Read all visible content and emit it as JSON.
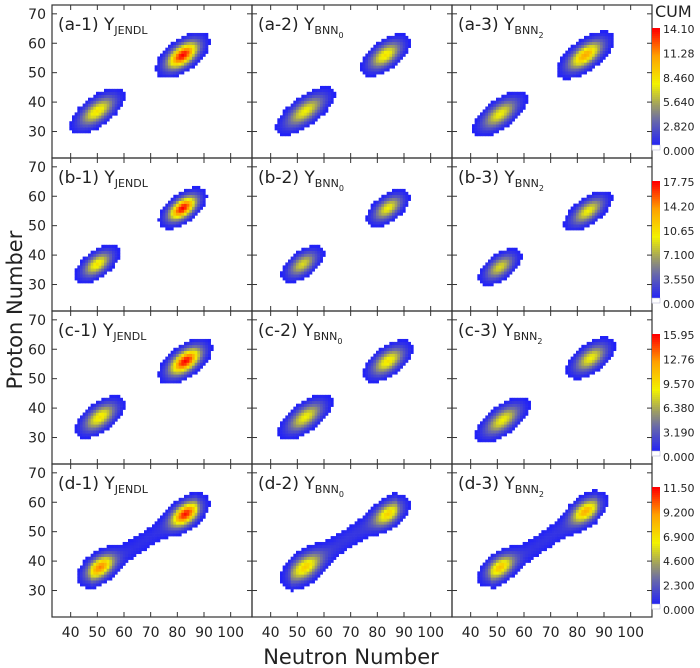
{
  "chart_data": {
    "type": "heatmap",
    "xlabel": "Neutron Number",
    "ylabel": "Proton Number",
    "colorbar_title": "CUM",
    "xlim": [
      33,
      108
    ],
    "ylim": [
      21,
      73
    ],
    "xticks": [
      40,
      50,
      60,
      70,
      80,
      90,
      100
    ],
    "yticks": [
      30,
      40,
      50,
      60,
      70
    ],
    "colormap": [
      "#ffffff",
      "#1a1aff",
      "#6a6aa8",
      "#a0a060",
      "#f2f200",
      "#ffa000",
      "#ff0000"
    ],
    "rows": [
      {
        "colorbar_ticks": [
          "0.000",
          "2.820",
          "5.640",
          "8.460",
          "11.28",
          "14.10"
        ],
        "max": 14.1,
        "panels": [
          {
            "label": "(a-1) Y",
            "sub": "JENDL",
            "clusters": [
              {
                "n": 50,
                "z": 37,
                "amp": 0.6,
                "s1": 5,
                "s2": 2.2
              },
              {
                "n": 82,
                "z": 56,
                "amp": 1.0,
                "s1": 4.5,
                "s2": 2.2
              }
            ],
            "band": 0
          },
          {
            "label": "(a-2) Y",
            "sub": "BNN",
            "subsub": "0",
            "clusters": [
              {
                "n": 53,
                "z": 37,
                "amp": 0.55,
                "s1": 5.5,
                "s2": 2.2
              },
              {
                "n": 83,
                "z": 56,
                "amp": 0.6,
                "s1": 4.5,
                "s2": 2.2
              }
            ],
            "band": 0
          },
          {
            "label": "(a-3) Y",
            "sub": "BNN",
            "subsub": "2",
            "clusters": [
              {
                "n": 51,
                "z": 36,
                "amp": 0.55,
                "s1": 5,
                "s2": 2.2
              },
              {
                "n": 83,
                "z": 56,
                "amp": 0.75,
                "s1": 5,
                "s2": 2.2
              }
            ],
            "band": 0
          }
        ]
      },
      {
        "colorbar_ticks": [
          "0.000",
          "3.550",
          "7.100",
          "10.65",
          "14.20",
          "17.75"
        ],
        "max": 17.75,
        "panels": [
          {
            "label": "(b-1) Y",
            "sub": "JENDL",
            "clusters": [
              {
                "n": 50,
                "z": 37,
                "amp": 0.6,
                "s1": 4,
                "s2": 2
              },
              {
                "n": 82,
                "z": 56,
                "amp": 1.0,
                "s1": 4,
                "s2": 2
              }
            ],
            "band": 0
          },
          {
            "label": "(b-2) Y",
            "sub": "BNN",
            "subsub": "0",
            "clusters": [
              {
                "n": 52,
                "z": 37,
                "amp": 0.5,
                "s1": 4,
                "s2": 2
              },
              {
                "n": 84,
                "z": 56,
                "amp": 0.55,
                "s1": 4,
                "s2": 2
              }
            ],
            "band": 0
          },
          {
            "label": "(b-3) Y",
            "sub": "BNN",
            "subsub": "2",
            "clusters": [
              {
                "n": 51,
                "z": 36,
                "amp": 0.5,
                "s1": 4,
                "s2": 2
              },
              {
                "n": 84,
                "z": 55,
                "amp": 0.55,
                "s1": 4.5,
                "s2": 2
              }
            ],
            "band": 0
          }
        ]
      },
      {
        "colorbar_ticks": [
          "0.000",
          "3.190",
          "6.380",
          "9.570",
          "12.76",
          "15.95"
        ],
        "max": 15.95,
        "panels": [
          {
            "label": "(c-1) Y",
            "sub": "JENDL",
            "clusters": [
              {
                "n": 51,
                "z": 37,
                "amp": 0.6,
                "s1": 4.5,
                "s2": 2.2
              },
              {
                "n": 83,
                "z": 56,
                "amp": 1.0,
                "s1": 4.5,
                "s2": 2.2
              }
            ],
            "band": 0
          },
          {
            "label": "(c-2) Y",
            "sub": "BNN",
            "subsub": "0",
            "clusters": [
              {
                "n": 53,
                "z": 37,
                "amp": 0.55,
                "s1": 5,
                "s2": 2.2
              },
              {
                "n": 84,
                "z": 56,
                "amp": 0.6,
                "s1": 4.5,
                "s2": 2.2
              }
            ],
            "band": 0
          },
          {
            "label": "(c-3) Y",
            "sub": "BNN",
            "subsub": "2",
            "clusters": [
              {
                "n": 52,
                "z": 36,
                "amp": 0.55,
                "s1": 5,
                "s2": 2.2
              },
              {
                "n": 85,
                "z": 57,
                "amp": 0.55,
                "s1": 4.5,
                "s2": 2.2
              }
            ],
            "band": 0
          }
        ]
      },
      {
        "colorbar_ticks": [
          "0.000",
          "2.300",
          "4.600",
          "6.900",
          "9.200",
          "11.50"
        ],
        "max": 11.5,
        "panels": [
          {
            "label": "(d-1) Y",
            "sub": "JENDL",
            "clusters": [
              {
                "n": 51,
                "z": 38,
                "amp": 0.75,
                "s1": 4,
                "s2": 2.2
              },
              {
                "n": 83,
                "z": 56,
                "amp": 0.9,
                "s1": 4,
                "s2": 2.2
              }
            ],
            "band": 0.08
          },
          {
            "label": "(d-2) Y",
            "sub": "BNN",
            "subsub": "0",
            "clusters": [
              {
                "n": 53,
                "z": 38,
                "amp": 0.55,
                "s1": 4.5,
                "s2": 2.5
              },
              {
                "n": 84,
                "z": 56,
                "amp": 0.55,
                "s1": 4,
                "s2": 2.2
              }
            ],
            "band": 0.1
          },
          {
            "label": "(d-3) Y",
            "sub": "BNN",
            "subsub": "2",
            "clusters": [
              {
                "n": 51,
                "z": 38,
                "amp": 0.6,
                "s1": 4,
                "s2": 2.2
              },
              {
                "n": 83,
                "z": 57,
                "amp": 0.65,
                "s1": 4,
                "s2": 2.2
              }
            ],
            "band": 0.09
          }
        ]
      }
    ]
  }
}
